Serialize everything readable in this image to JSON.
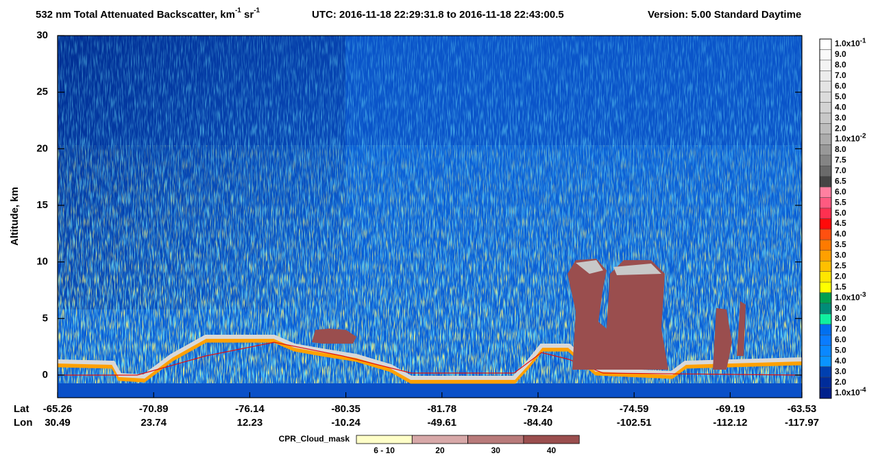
{
  "chart_data": {
    "type": "heatmap",
    "title": {
      "main": "532 nm Total Attenuated Backscatter, km",
      "exp1": "-1",
      "mid": " sr",
      "exp2": "-1",
      "utc": "UTC:  2016-11-18 22:29:31.8  to  2016-11-18 22:43:00.5",
      "version": "Version: 5.00  Standard  Daytime"
    },
    "y_label": "Altitude, km",
    "ylim": [
      -2,
      30
    ],
    "yticks": [
      0,
      5,
      10,
      15,
      20,
      25,
      30
    ],
    "x_rows": [
      "Lat",
      "Lon"
    ],
    "lat": [
      "-65.26",
      "-70.89",
      "-76.14",
      "-80.35",
      "-81.78",
      "-79.24",
      "-74.59",
      "-69.19",
      "-63.53"
    ],
    "lon": [
      "30.49",
      "23.74",
      "12.23",
      "-10.24",
      "-49.61",
      "-84.40",
      "-102.51",
      "-112.12",
      "-117.97"
    ],
    "colorbar": [
      {
        "label": "1.0x10",
        "exp": "-1",
        "color": "#ffffff"
      },
      {
        "label": "9.0",
        "color": "#fafafa"
      },
      {
        "label": "8.0",
        "color": "#f3f3f3"
      },
      {
        "label": "7.0",
        "color": "#ececec"
      },
      {
        "label": "6.0",
        "color": "#e4e4e4"
      },
      {
        "label": "5.0",
        "color": "#dcdcdc"
      },
      {
        "label": "4.0",
        "color": "#d3d3d3"
      },
      {
        "label": "3.0",
        "color": "#c8c8c8"
      },
      {
        "label": "2.0",
        "color": "#bcbcbc"
      },
      {
        "label": "1.0x10",
        "exp": "-2",
        "color": "#acacac"
      },
      {
        "label": "8.0",
        "color": "#989898"
      },
      {
        "label": "7.5",
        "color": "#848484"
      },
      {
        "label": "7.0",
        "color": "#6a6a6a"
      },
      {
        "label": "6.5",
        "color": "#454545"
      },
      {
        "label": "6.0",
        "color": "#ff80a0"
      },
      {
        "label": "5.5",
        "color": "#ff5a80"
      },
      {
        "label": "5.0",
        "color": "#ff3050"
      },
      {
        "label": "4.5",
        "color": "#ff0a0a"
      },
      {
        "label": "4.0",
        "color": "#ff5010"
      },
      {
        "label": "3.5",
        "color": "#ff7a00"
      },
      {
        "label": "3.0",
        "color": "#ffa000"
      },
      {
        "label": "2.5",
        "color": "#ffc000"
      },
      {
        "label": "2.0",
        "color": "#ffe600"
      },
      {
        "label": "1.5",
        "color": "#ffff00"
      },
      {
        "label": "1.0x10",
        "exp": "-3",
        "color": "#00a050"
      },
      {
        "label": "9.0",
        "color": "#008c78"
      },
      {
        "label": "8.0",
        "color": "#10f0a0"
      },
      {
        "label": "7.0",
        "color": "#0070f0"
      },
      {
        "label": "6.0",
        "color": "#0a7cff"
      },
      {
        "label": "5.0",
        "color": "#0a88ff"
      },
      {
        "label": "4.0",
        "color": "#0a94ff"
      },
      {
        "label": "3.0",
        "color": "#0040b0"
      },
      {
        "label": "2.0",
        "color": "#002c9a"
      },
      {
        "label": "1.0x10",
        "exp": "-4",
        "color": "#00208c"
      }
    ],
    "cloud_mask": {
      "title": "CPR_Cloud_mask",
      "items": [
        {
          "label": "6 - 10",
          "color": "#ffffc8"
        },
        {
          "label": "20",
          "color": "#d7a8a8"
        },
        {
          "label": "30",
          "color": "#b87a7a"
        },
        {
          "label": "40",
          "color": "#9a4e4e"
        }
      ]
    }
  }
}
